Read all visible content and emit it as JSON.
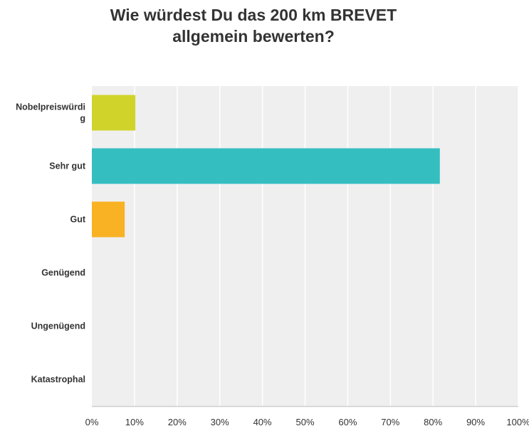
{
  "chart_data": {
    "type": "bar",
    "orientation": "horizontal",
    "title_lines": [
      "Wie würdest Du das 200 km BREVET",
      "allgemein bewerten?"
    ],
    "categories": [
      {
        "label_lines": [
          "Nobelpreiswürdi",
          "g"
        ],
        "value": 10.2,
        "color": "#d0d42a"
      },
      {
        "label_lines": [
          "Sehr gut"
        ],
        "value": 81.6,
        "color": "#35bec0"
      },
      {
        "label_lines": [
          "Gut"
        ],
        "value": 7.7,
        "color": "#f8b224"
      },
      {
        "label_lines": [
          "Genügend"
        ],
        "value": 0,
        "color": "#999999"
      },
      {
        "label_lines": [
          "Ungenügend"
        ],
        "value": 0,
        "color": "#999999"
      },
      {
        "label_lines": [
          "Katastrophal"
        ],
        "value": 0,
        "color": "#999999"
      }
    ],
    "xlim": [
      0,
      100
    ],
    "xticks": [
      "0%",
      "10%",
      "20%",
      "30%",
      "40%",
      "50%",
      "60%",
      "70%",
      "80%",
      "90%",
      "100%"
    ],
    "grid": true,
    "plot_background": "#efefef",
    "gridline_color": "#ffffff"
  }
}
